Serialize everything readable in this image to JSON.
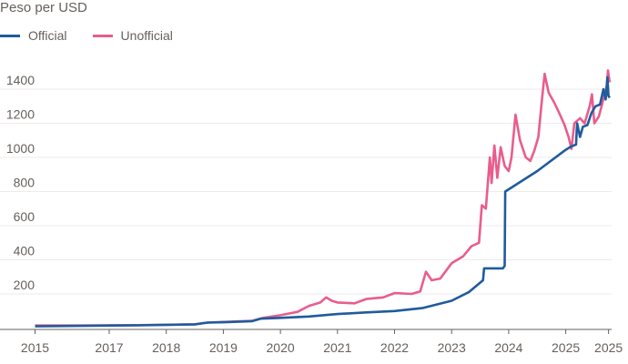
{
  "chart_data": {
    "type": "line",
    "title": "Peso per USD",
    "xlabel": "",
    "ylabel": "",
    "ylim": [
      0,
      1550
    ],
    "xlim": [
      2015.7,
      2025.8
    ],
    "yticks": [
      200,
      400,
      600,
      800,
      1000,
      1200,
      1400
    ],
    "xticks": [
      {
        "v": 2015.7,
        "label": "2015"
      },
      {
        "v": 2017,
        "label": "2017"
      },
      {
        "v": 2018,
        "label": "2018"
      },
      {
        "v": 2019,
        "label": "2019"
      },
      {
        "v": 2020,
        "label": "2020"
      },
      {
        "v": 2021,
        "label": "2021"
      },
      {
        "v": 2022,
        "label": "2022"
      },
      {
        "v": 2023,
        "label": "2023"
      },
      {
        "v": 2024,
        "label": "2024"
      },
      {
        "v": 2025,
        "label": "2025"
      },
      {
        "v": 2025.75,
        "label": "2025"
      }
    ],
    "grid": true,
    "legend_position": "top-left",
    "series": [
      {
        "name": "Unofficial",
        "color": "#e95d8c",
        "points": [
          [
            2015.7,
            15
          ],
          [
            2016.5,
            15
          ],
          [
            2017.5,
            17
          ],
          [
            2018.5,
            22
          ],
          [
            2018.72,
            32
          ],
          [
            2019.5,
            42
          ],
          [
            2019.7,
            60
          ],
          [
            2020,
            75
          ],
          [
            2020.3,
            95
          ],
          [
            2020.5,
            130
          ],
          [
            2020.7,
            150
          ],
          [
            2020.8,
            180
          ],
          [
            2020.9,
            160
          ],
          [
            2021,
            150
          ],
          [
            2021.3,
            145
          ],
          [
            2021.5,
            170
          ],
          [
            2021.8,
            180
          ],
          [
            2022,
            205
          ],
          [
            2022.3,
            200
          ],
          [
            2022.45,
            215
          ],
          [
            2022.55,
            330
          ],
          [
            2022.65,
            280
          ],
          [
            2022.8,
            290
          ],
          [
            2023,
            380
          ],
          [
            2023.2,
            420
          ],
          [
            2023.35,
            480
          ],
          [
            2023.48,
            500
          ],
          [
            2023.53,
            720
          ],
          [
            2023.6,
            700
          ],
          [
            2023.67,
            1000
          ],
          [
            2023.7,
            850
          ],
          [
            2023.75,
            1070
          ],
          [
            2023.8,
            880
          ],
          [
            2023.86,
            1060
          ],
          [
            2023.93,
            950
          ],
          [
            2024,
            920
          ],
          [
            2024.05,
            1000
          ],
          [
            2024.12,
            1250
          ],
          [
            2024.2,
            1100
          ],
          [
            2024.3,
            1000
          ],
          [
            2024.38,
            980
          ],
          [
            2024.45,
            1040
          ],
          [
            2024.52,
            1120
          ],
          [
            2024.58,
            1330
          ],
          [
            2024.63,
            1490
          ],
          [
            2024.7,
            1380
          ],
          [
            2024.8,
            1320
          ],
          [
            2024.9,
            1250
          ],
          [
            2024.98,
            1190
          ],
          [
            2025.05,
            1120
          ],
          [
            2025.1,
            1050
          ],
          [
            2025.15,
            1200
          ],
          [
            2025.25,
            1230
          ],
          [
            2025.33,
            1200
          ],
          [
            2025.42,
            1300
          ],
          [
            2025.46,
            1370
          ],
          [
            2025.5,
            1200
          ],
          [
            2025.58,
            1240
          ],
          [
            2025.65,
            1330
          ],
          [
            2025.72,
            1420
          ],
          [
            2025.74,
            1510
          ],
          [
            2025.77,
            1440
          ]
        ]
      },
      {
        "name": "Official",
        "color": "#1f5b9e",
        "points": [
          [
            2015.7,
            10
          ],
          [
            2016.5,
            13
          ],
          [
            2017.5,
            16
          ],
          [
            2018.5,
            22
          ],
          [
            2018.72,
            32
          ],
          [
            2019,
            34
          ],
          [
            2019.5,
            40
          ],
          [
            2019.65,
            55
          ],
          [
            2020,
            60
          ],
          [
            2020.5,
            68
          ],
          [
            2021,
            82
          ],
          [
            2021.5,
            92
          ],
          [
            2022,
            100
          ],
          [
            2022.5,
            118
          ],
          [
            2023,
            160
          ],
          [
            2023.3,
            210
          ],
          [
            2023.55,
            280
          ],
          [
            2023.57,
            350
          ],
          [
            2023.9,
            350
          ],
          [
            2023.93,
            365
          ],
          [
            2023.94,
            800
          ],
          [
            2024.5,
            920
          ],
          [
            2025,
            1045
          ],
          [
            2025.1,
            1065
          ],
          [
            2025.18,
            1075
          ],
          [
            2025.2,
            1200
          ],
          [
            2025.25,
            1120
          ],
          [
            2025.3,
            1180
          ],
          [
            2025.38,
            1190
          ],
          [
            2025.45,
            1260
          ],
          [
            2025.52,
            1300
          ],
          [
            2025.6,
            1310
          ],
          [
            2025.66,
            1400
          ],
          [
            2025.7,
            1340
          ],
          [
            2025.73,
            1470
          ],
          [
            2025.75,
            1360
          ],
          [
            2025.77,
            1350
          ]
        ]
      }
    ]
  }
}
